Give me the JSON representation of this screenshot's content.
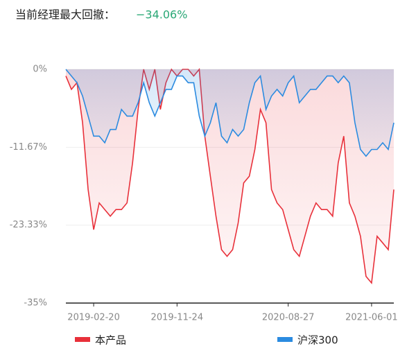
{
  "chart_data": {
    "type": "line",
    "title": "当前经理最大回撤：",
    "title_value": "−34.06%",
    "categories": [
      null,
      null,
      null,
      null,
      null,
      "2019-02-20",
      null,
      null,
      null,
      null,
      null,
      null,
      null,
      null,
      null,
      null,
      null,
      null,
      null,
      null,
      "2019-11-24",
      null,
      null,
      null,
      null,
      null,
      null,
      null,
      null,
      null,
      null,
      null,
      null,
      null,
      null,
      null,
      null,
      null,
      null,
      null,
      "2020-08-27",
      null,
      null,
      null,
      null,
      null,
      null,
      null,
      null,
      null,
      null,
      null,
      null,
      null,
      null,
      "2021-06-01",
      null,
      null,
      null,
      null
    ],
    "series": [
      {
        "name": "本产品",
        "color": "#e8303a",
        "values": [
          -1,
          -3,
          -2,
          -8,
          -18,
          -24,
          -20,
          -21,
          -22,
          -21,
          -21,
          -20,
          -14,
          -6,
          0,
          -3,
          0,
          -6,
          -2,
          0,
          -1,
          0,
          0,
          -1,
          0,
          -10,
          -16,
          -22,
          -27,
          -28,
          -27,
          -23,
          -17,
          -16,
          -12,
          -6,
          -8,
          -18,
          -20,
          -21,
          -24,
          -27,
          -28,
          -25,
          -22,
          -20,
          -21,
          -21,
          -22,
          -14,
          -10,
          -20,
          -22,
          -25,
          -31,
          -32,
          -25,
          -26,
          -27,
          -18
        ]
      },
      {
        "name": "沪深300",
        "color": "#2b8be0",
        "values": [
          0,
          -1,
          -2,
          -4,
          -7,
          -10,
          -10,
          -11,
          -9,
          -9,
          -6,
          -7,
          -7,
          -5,
          -2,
          -5,
          -7,
          -5,
          -3,
          -3,
          -1,
          -1,
          -2,
          -2,
          -7,
          -10,
          -8,
          -5,
          -10,
          -11,
          -9,
          -10,
          -9,
          -5,
          -2,
          -1,
          -6,
          -4,
          -3,
          -4,
          -2,
          -1,
          -5,
          -4,
          -3,
          -3,
          -2,
          -1,
          -1,
          -2,
          -1,
          -2,
          -8,
          -12,
          -13,
          -12,
          -12,
          -11,
          -12,
          -8
        ]
      }
    ],
    "ylim": [
      -35,
      0
    ],
    "yticks": [
      {
        "value": 0,
        "label": "0%"
      },
      {
        "value": -11.67,
        "label": "-11.67%"
      },
      {
        "value": -23.33,
        "label": "-23.33%"
      },
      {
        "value": -35,
        "label": "-35%"
      }
    ],
    "grid": true
  }
}
